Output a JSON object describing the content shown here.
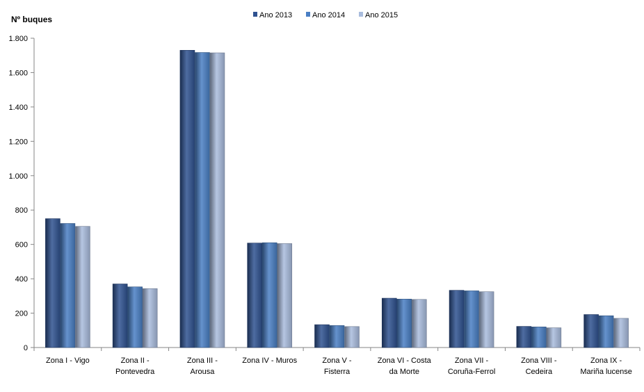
{
  "chart_data": {
    "type": "bar",
    "ylabel": "Nº  buques",
    "xlabel": "",
    "ylim": [
      0,
      1800
    ],
    "yticks": [
      0,
      200,
      400,
      600,
      800,
      1000,
      1200,
      1400,
      1600,
      1800
    ],
    "ytick_labels": [
      "0",
      "200",
      "400",
      "600",
      "800",
      "1.000",
      "1.200",
      "1.400",
      "1.600",
      "1.800"
    ],
    "categories": [
      [
        "Zona I - Vigo"
      ],
      [
        "Zona II -",
        "Pontevedra"
      ],
      [
        "Zona III -",
        "Arousa"
      ],
      [
        "Zona IV - Muros"
      ],
      [
        "Zona V -",
        "Fisterra"
      ],
      [
        "Zona VI - Costa",
        "da Morte"
      ],
      [
        "Zona VII -",
        "Coruña-Ferrol"
      ],
      [
        "Zona VIII -",
        "Cedeira"
      ],
      [
        "Zona IX -",
        "Mariña lucense"
      ]
    ],
    "series": [
      {
        "name": "Ano 2013",
        "color": "#2F5290",
        "values": [
          750,
          370,
          1730,
          608,
          133,
          287,
          333,
          123,
          192
        ]
      },
      {
        "name": "Ano 2014",
        "color": "#4A7FC4",
        "values": [
          722,
          353,
          1717,
          610,
          128,
          282,
          330,
          120,
          185
        ]
      },
      {
        "name": "Ano 2015",
        "color": "#A9BCDD",
        "values": [
          705,
          343,
          1715,
          605,
          122,
          280,
          325,
          115,
          170
        ]
      }
    ],
    "legend_position": "top",
    "grid": false
  }
}
